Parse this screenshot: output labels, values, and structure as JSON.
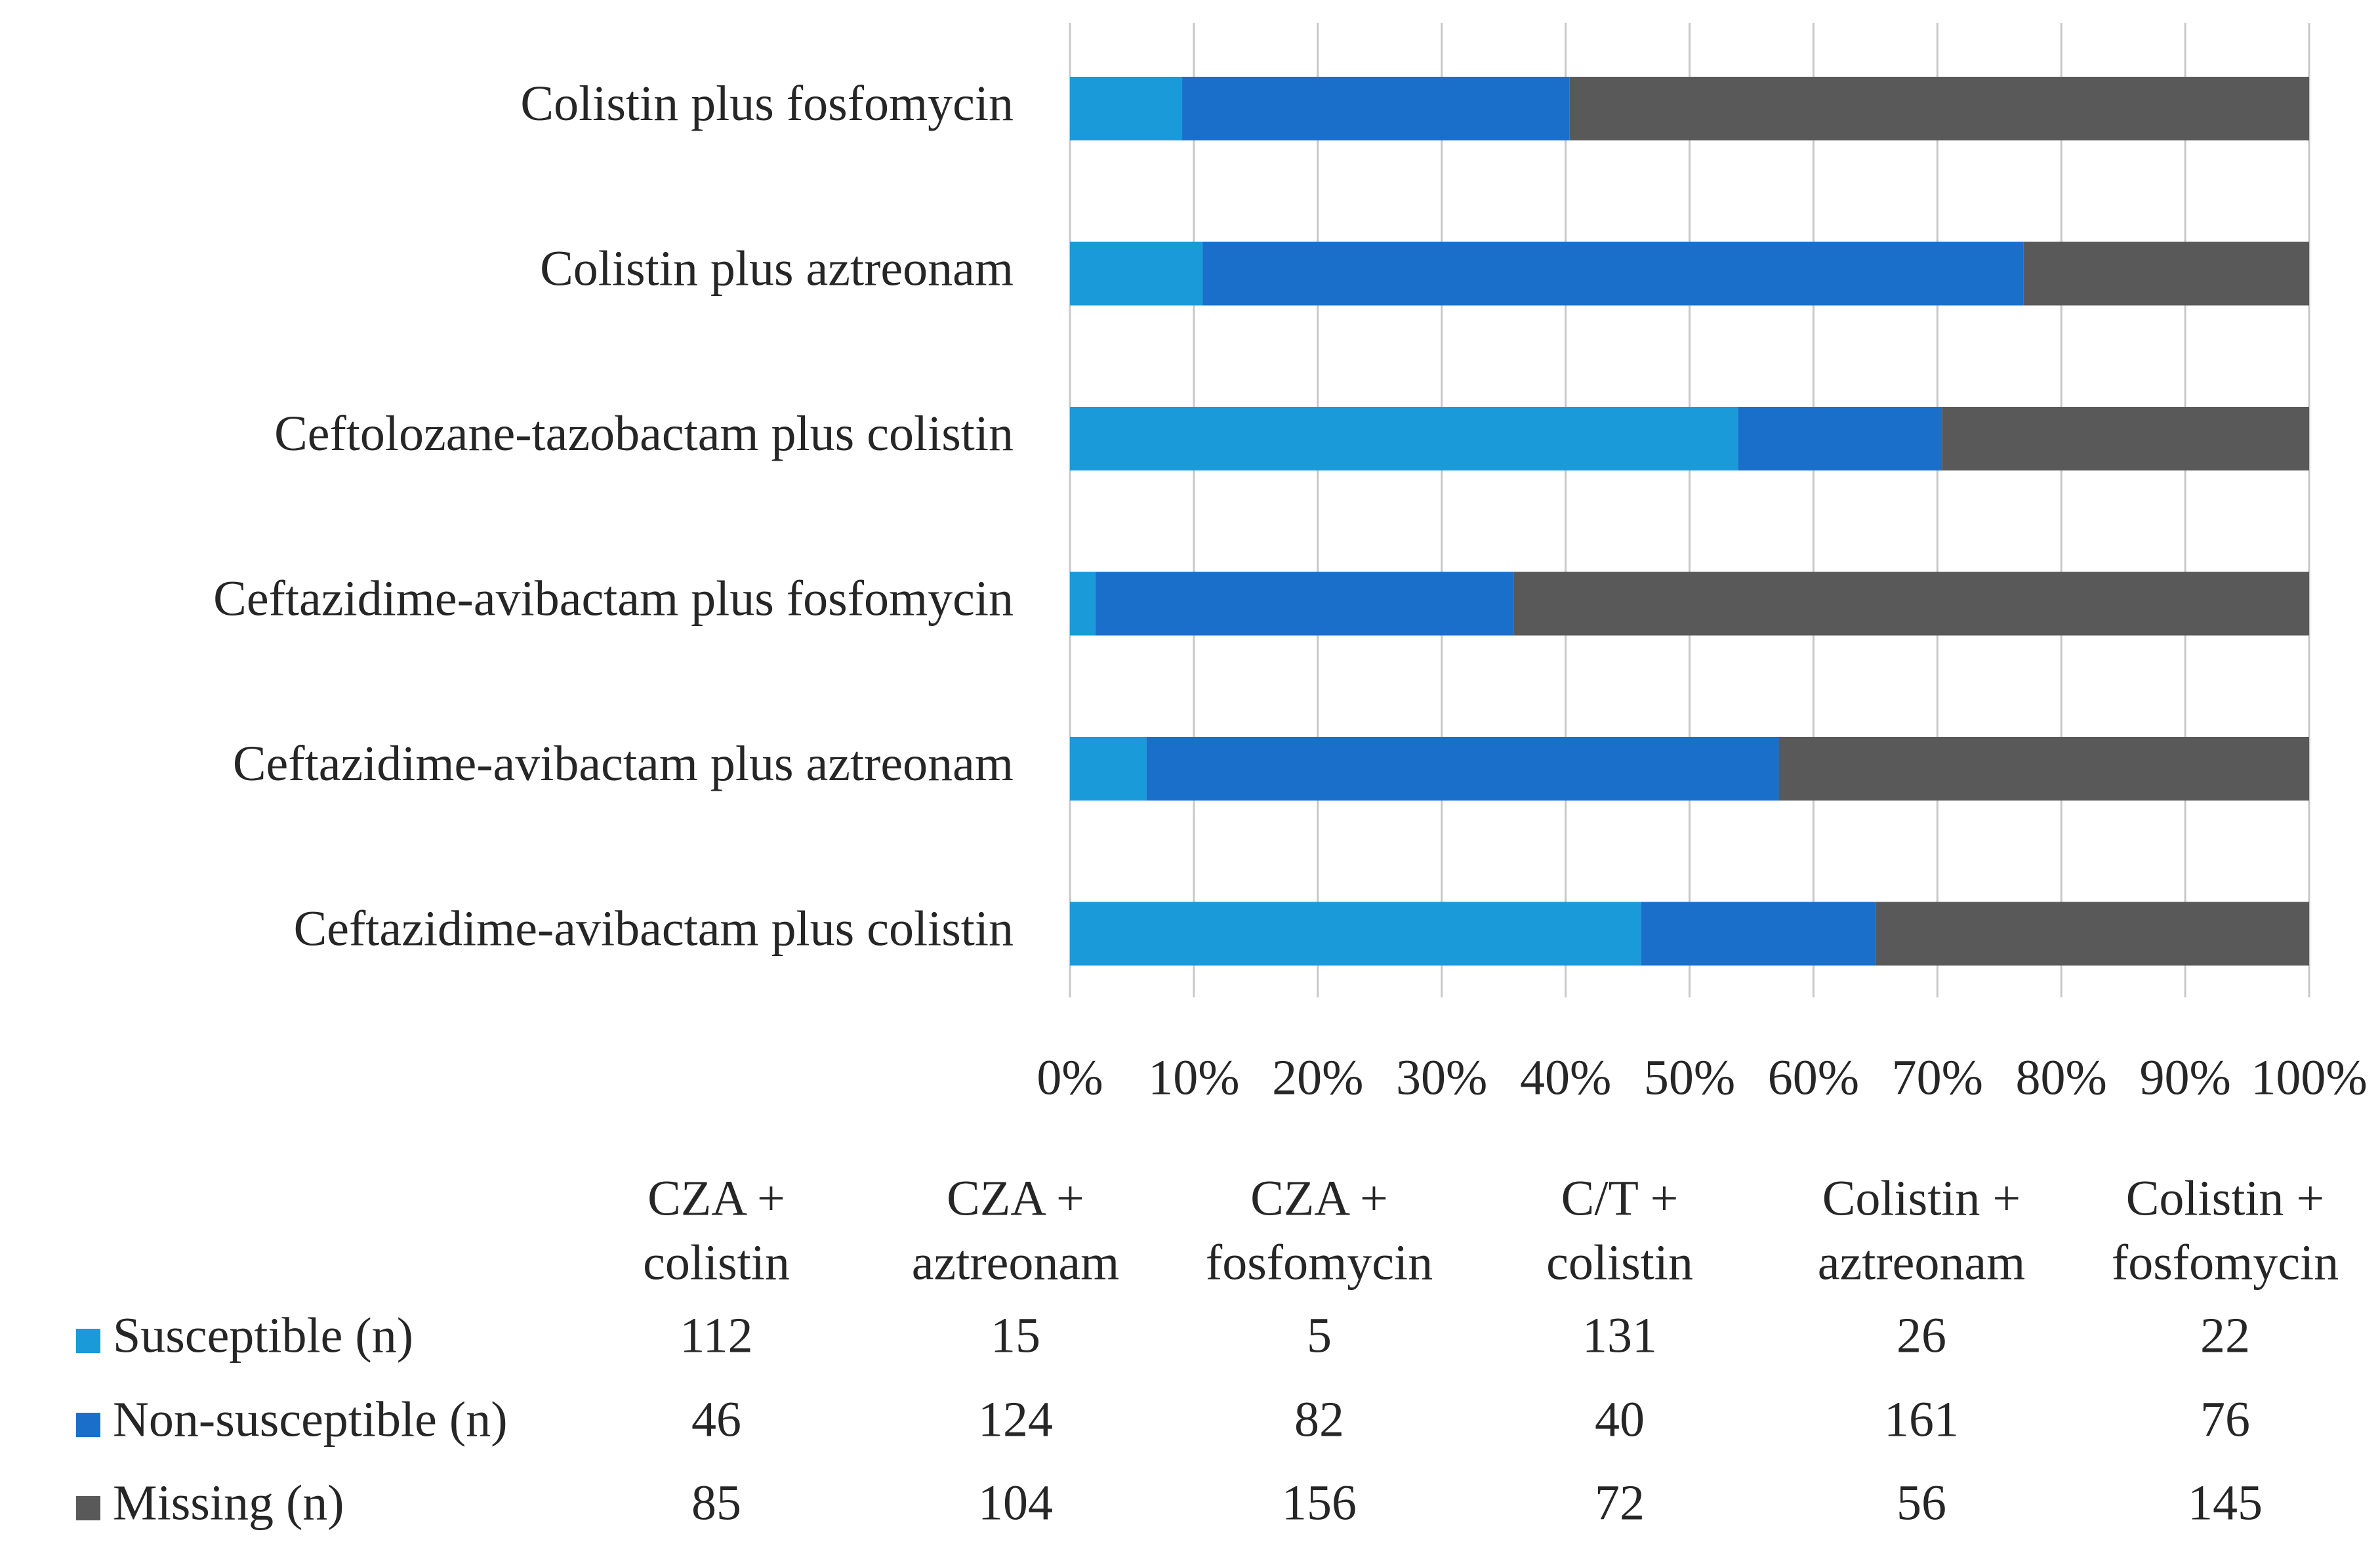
{
  "chart_data": {
    "type": "stacked-bar-horizontal",
    "stacking": "percent",
    "categories": [
      "Ceftazidime-avibactam plus colistin",
      "Ceftazidime-avibactam plus aztreonam",
      "Ceftazidime-avibactam plus fosfomycin",
      "Ceftolozane-tazobactam plus colistin",
      "Colistin plus aztreonam",
      "Colistin plus fosfomycin"
    ],
    "table_columns": [
      [
        "CZA +",
        "colistin"
      ],
      [
        "CZA +",
        "aztreonam"
      ],
      [
        "CZA +",
        "fosfomycin"
      ],
      [
        "C/T +",
        "colistin"
      ],
      [
        "Colistin +",
        "aztreonam"
      ],
      [
        "Colistin +",
        "fosfomycin"
      ]
    ],
    "series": [
      {
        "name": "Susceptible (n)",
        "color": "#1a9ad8",
        "values": [
          112,
          15,
          5,
          131,
          26,
          22
        ]
      },
      {
        "name": "Non-susceptible (n)",
        "color": "#1a6fcb",
        "values": [
          46,
          124,
          82,
          40,
          161,
          76
        ]
      },
      {
        "name": "Missing (n)",
        "color": "#595959",
        "values": [
          85,
          104,
          156,
          72,
          56,
          145
        ]
      }
    ],
    "xlim": [
      0,
      100
    ],
    "xticks": [
      {
        "value": 0,
        "label": "0%"
      },
      {
        "value": 10,
        "label": "10%"
      },
      {
        "value": 20,
        "label": "20%"
      },
      {
        "value": 30,
        "label": "30%"
      },
      {
        "value": 40,
        "label": "40%"
      },
      {
        "value": 50,
        "label": "50%"
      },
      {
        "value": 60,
        "label": "60%"
      },
      {
        "value": 70,
        "label": "70%"
      },
      {
        "value": 80,
        "label": "80%"
      },
      {
        "value": 90,
        "label": "90%"
      },
      {
        "value": 100,
        "label": "100%"
      }
    ],
    "grid": true
  }
}
